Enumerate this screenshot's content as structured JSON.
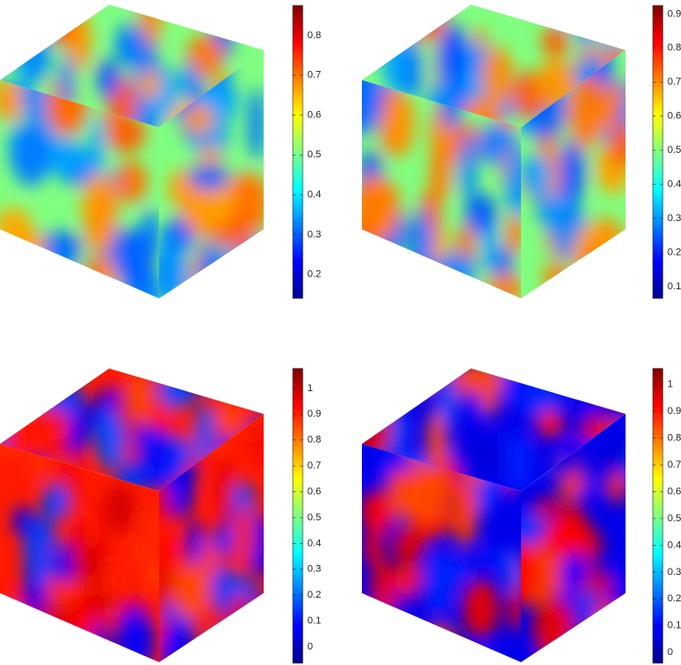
{
  "chart_data": [
    {
      "type": "surface",
      "colormap": "jet",
      "ylim": [
        0.14,
        0.875
      ],
      "yticks": [
        0.2,
        0.3,
        0.4,
        0.5,
        0.6,
        0.7,
        0.8
      ]
    },
    {
      "type": "surface",
      "colormap": "jet",
      "ylim": [
        0.065,
        0.925
      ],
      "yticks": [
        0.1,
        0.2,
        0.3,
        0.4,
        0.5,
        0.6,
        0.7,
        0.8,
        0.9
      ]
    },
    {
      "type": "surface",
      "colormap": "jet",
      "ylim": [
        -0.063,
        1.077
      ],
      "yticks": [
        0,
        0.1,
        0.2,
        0.3,
        0.4,
        0.5,
        0.6,
        0.7,
        0.8,
        0.9,
        1
      ]
    },
    {
      "type": "surface",
      "colormap": "jet",
      "ylim": [
        -0.04,
        1.06
      ],
      "yticks": [
        0,
        0.1,
        0.2,
        0.3,
        0.4,
        0.5,
        0.6,
        0.7,
        0.8,
        0.9,
        1
      ]
    }
  ]
}
